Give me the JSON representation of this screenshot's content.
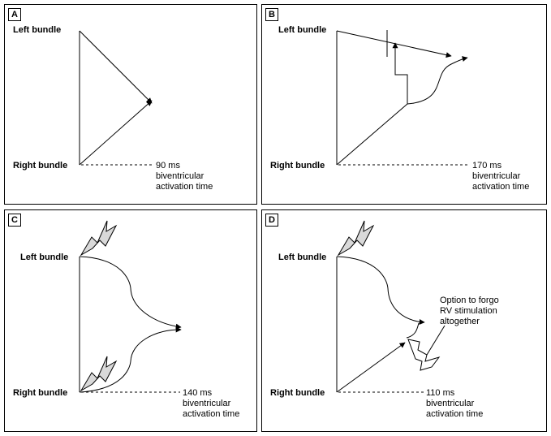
{
  "panels": {
    "a": {
      "letter": "A",
      "left_bundle": "Left bundle",
      "right_bundle": "Right bundle",
      "time_lines": [
        "90 ms",
        "biventricular",
        "activation time"
      ]
    },
    "b": {
      "letter": "B",
      "left_bundle": "Left bundle",
      "right_bundle": "Right bundle",
      "time_lines": [
        "170 ms",
        "biventricular",
        "activation time"
      ]
    },
    "c": {
      "letter": "C",
      "left_bundle": "Left bundle",
      "right_bundle": "Right bundle",
      "time_lines": [
        "140 ms",
        "biventricular",
        "activation time"
      ]
    },
    "d": {
      "letter": "D",
      "left_bundle": "Left bundle",
      "right_bundle": "Right bundle",
      "time_lines": [
        "110 ms",
        "biventricular",
        "activation time"
      ],
      "note_lines": [
        "Option to forgo",
        "RV stimulation",
        "altogether"
      ]
    }
  },
  "colors": {
    "line": "#000000",
    "bolt_fill": "#d9d9d9"
  },
  "icons": {
    "stimulation": "lightning-bolt-icon"
  }
}
